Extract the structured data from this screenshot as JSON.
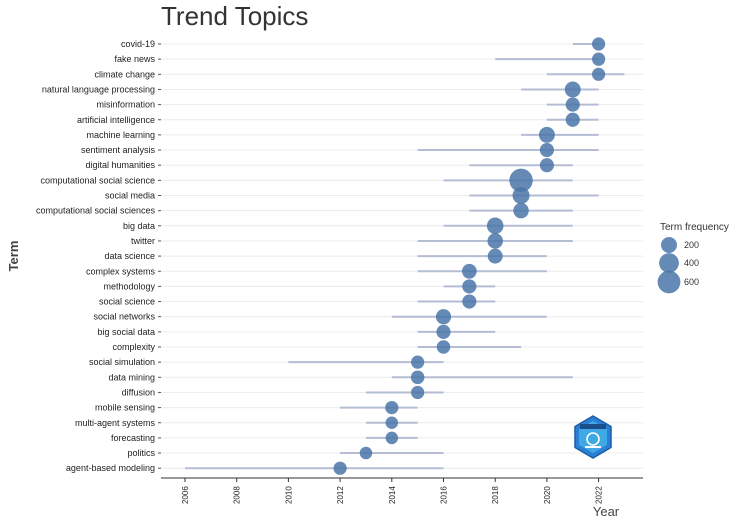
{
  "chart_data": {
    "type": "scatter",
    "title": "Trend Topics",
    "xlabel": "Year",
    "ylabel": "Term",
    "xlim": [
      2005.2,
      2023.7
    ],
    "x_ticks": [
      "2006",
      "2008",
      "2010",
      "2012",
      "2014",
      "2016",
      "2018",
      "2020",
      "2022"
    ],
    "grid": true,
    "legend_position": "right",
    "legend_title": "Term frequency",
    "legend_items": [
      {
        "label": "200",
        "value": 200
      },
      {
        "label": "400",
        "value": 400
      },
      {
        "label": "600",
        "value": 600
      }
    ],
    "point_color": "#4a76a8",
    "range_color": "#b5bdd4",
    "terms": [
      {
        "term": "covid-19",
        "q1": 2021,
        "median": 2022,
        "q3": 2022,
        "freq": 100
      },
      {
        "term": "fake news",
        "q1": 2018,
        "median": 2022,
        "q3": 2022,
        "freq": 100
      },
      {
        "term": "climate change",
        "q1": 2020,
        "median": 2022,
        "q3": 2023,
        "freq": 100
      },
      {
        "term": "natural language processing",
        "q1": 2019,
        "median": 2021,
        "q3": 2022,
        "freq": 200
      },
      {
        "term": "misinformation",
        "q1": 2020,
        "median": 2021,
        "q3": 2022,
        "freq": 130
      },
      {
        "term": "artificial intelligence",
        "q1": 2020,
        "median": 2021,
        "q3": 2022,
        "freq": 130
      },
      {
        "term": "machine learning",
        "q1": 2019,
        "median": 2020,
        "q3": 2022,
        "freq": 200
      },
      {
        "term": "sentiment analysis",
        "q1": 2015,
        "median": 2020,
        "q3": 2022,
        "freq": 130
      },
      {
        "term": "digital humanities",
        "q1": 2017,
        "median": 2020,
        "q3": 2021,
        "freq": 130
      },
      {
        "term": "computational social science",
        "q1": 2016,
        "median": 2019,
        "q3": 2021,
        "freq": 650
      },
      {
        "term": "social media",
        "q1": 2017,
        "median": 2019,
        "q3": 2022,
        "freq": 250
      },
      {
        "term": "computational social sciences",
        "q1": 2017,
        "median": 2019,
        "q3": 2021,
        "freq": 180
      },
      {
        "term": "big data",
        "q1": 2016,
        "median": 2018,
        "q3": 2021,
        "freq": 230
      },
      {
        "term": "twitter",
        "q1": 2015,
        "median": 2018,
        "q3": 2021,
        "freq": 180
      },
      {
        "term": "data science",
        "q1": 2015,
        "median": 2018,
        "q3": 2020,
        "freq": 160
      },
      {
        "term": "complex systems",
        "q1": 2015,
        "median": 2017,
        "q3": 2020,
        "freq": 150
      },
      {
        "term": "methodology",
        "q1": 2016,
        "median": 2017,
        "q3": 2018,
        "freq": 130
      },
      {
        "term": "social science",
        "q1": 2015,
        "median": 2017,
        "q3": 2018,
        "freq": 130
      },
      {
        "term": "social networks",
        "q1": 2014,
        "median": 2016,
        "q3": 2020,
        "freq": 170
      },
      {
        "term": "big social data",
        "q1": 2015,
        "median": 2016,
        "q3": 2018,
        "freq": 130
      },
      {
        "term": "complexity",
        "q1": 2015,
        "median": 2016,
        "q3": 2019,
        "freq": 110
      },
      {
        "term": "social simulation",
        "q1": 2010,
        "median": 2015,
        "q3": 2016,
        "freq": 100
      },
      {
        "term": "data mining",
        "q1": 2014,
        "median": 2015,
        "q3": 2021,
        "freq": 110
      },
      {
        "term": "diffusion",
        "q1": 2013,
        "median": 2015,
        "q3": 2016,
        "freq": 100
      },
      {
        "term": "mobile sensing",
        "q1": 2012,
        "median": 2014,
        "q3": 2015,
        "freq": 100
      },
      {
        "term": "multi-agent systems",
        "q1": 2013,
        "median": 2014,
        "q3": 2015,
        "freq": 80
      },
      {
        "term": "forecasting",
        "q1": 2013,
        "median": 2014,
        "q3": 2015,
        "freq": 80
      },
      {
        "term": "politics",
        "q1": 2012,
        "median": 2013,
        "q3": 2016,
        "freq": 80
      },
      {
        "term": "agent-based modeling",
        "q1": 2006,
        "median": 2012,
        "q3": 2016,
        "freq": 100
      }
    ]
  }
}
